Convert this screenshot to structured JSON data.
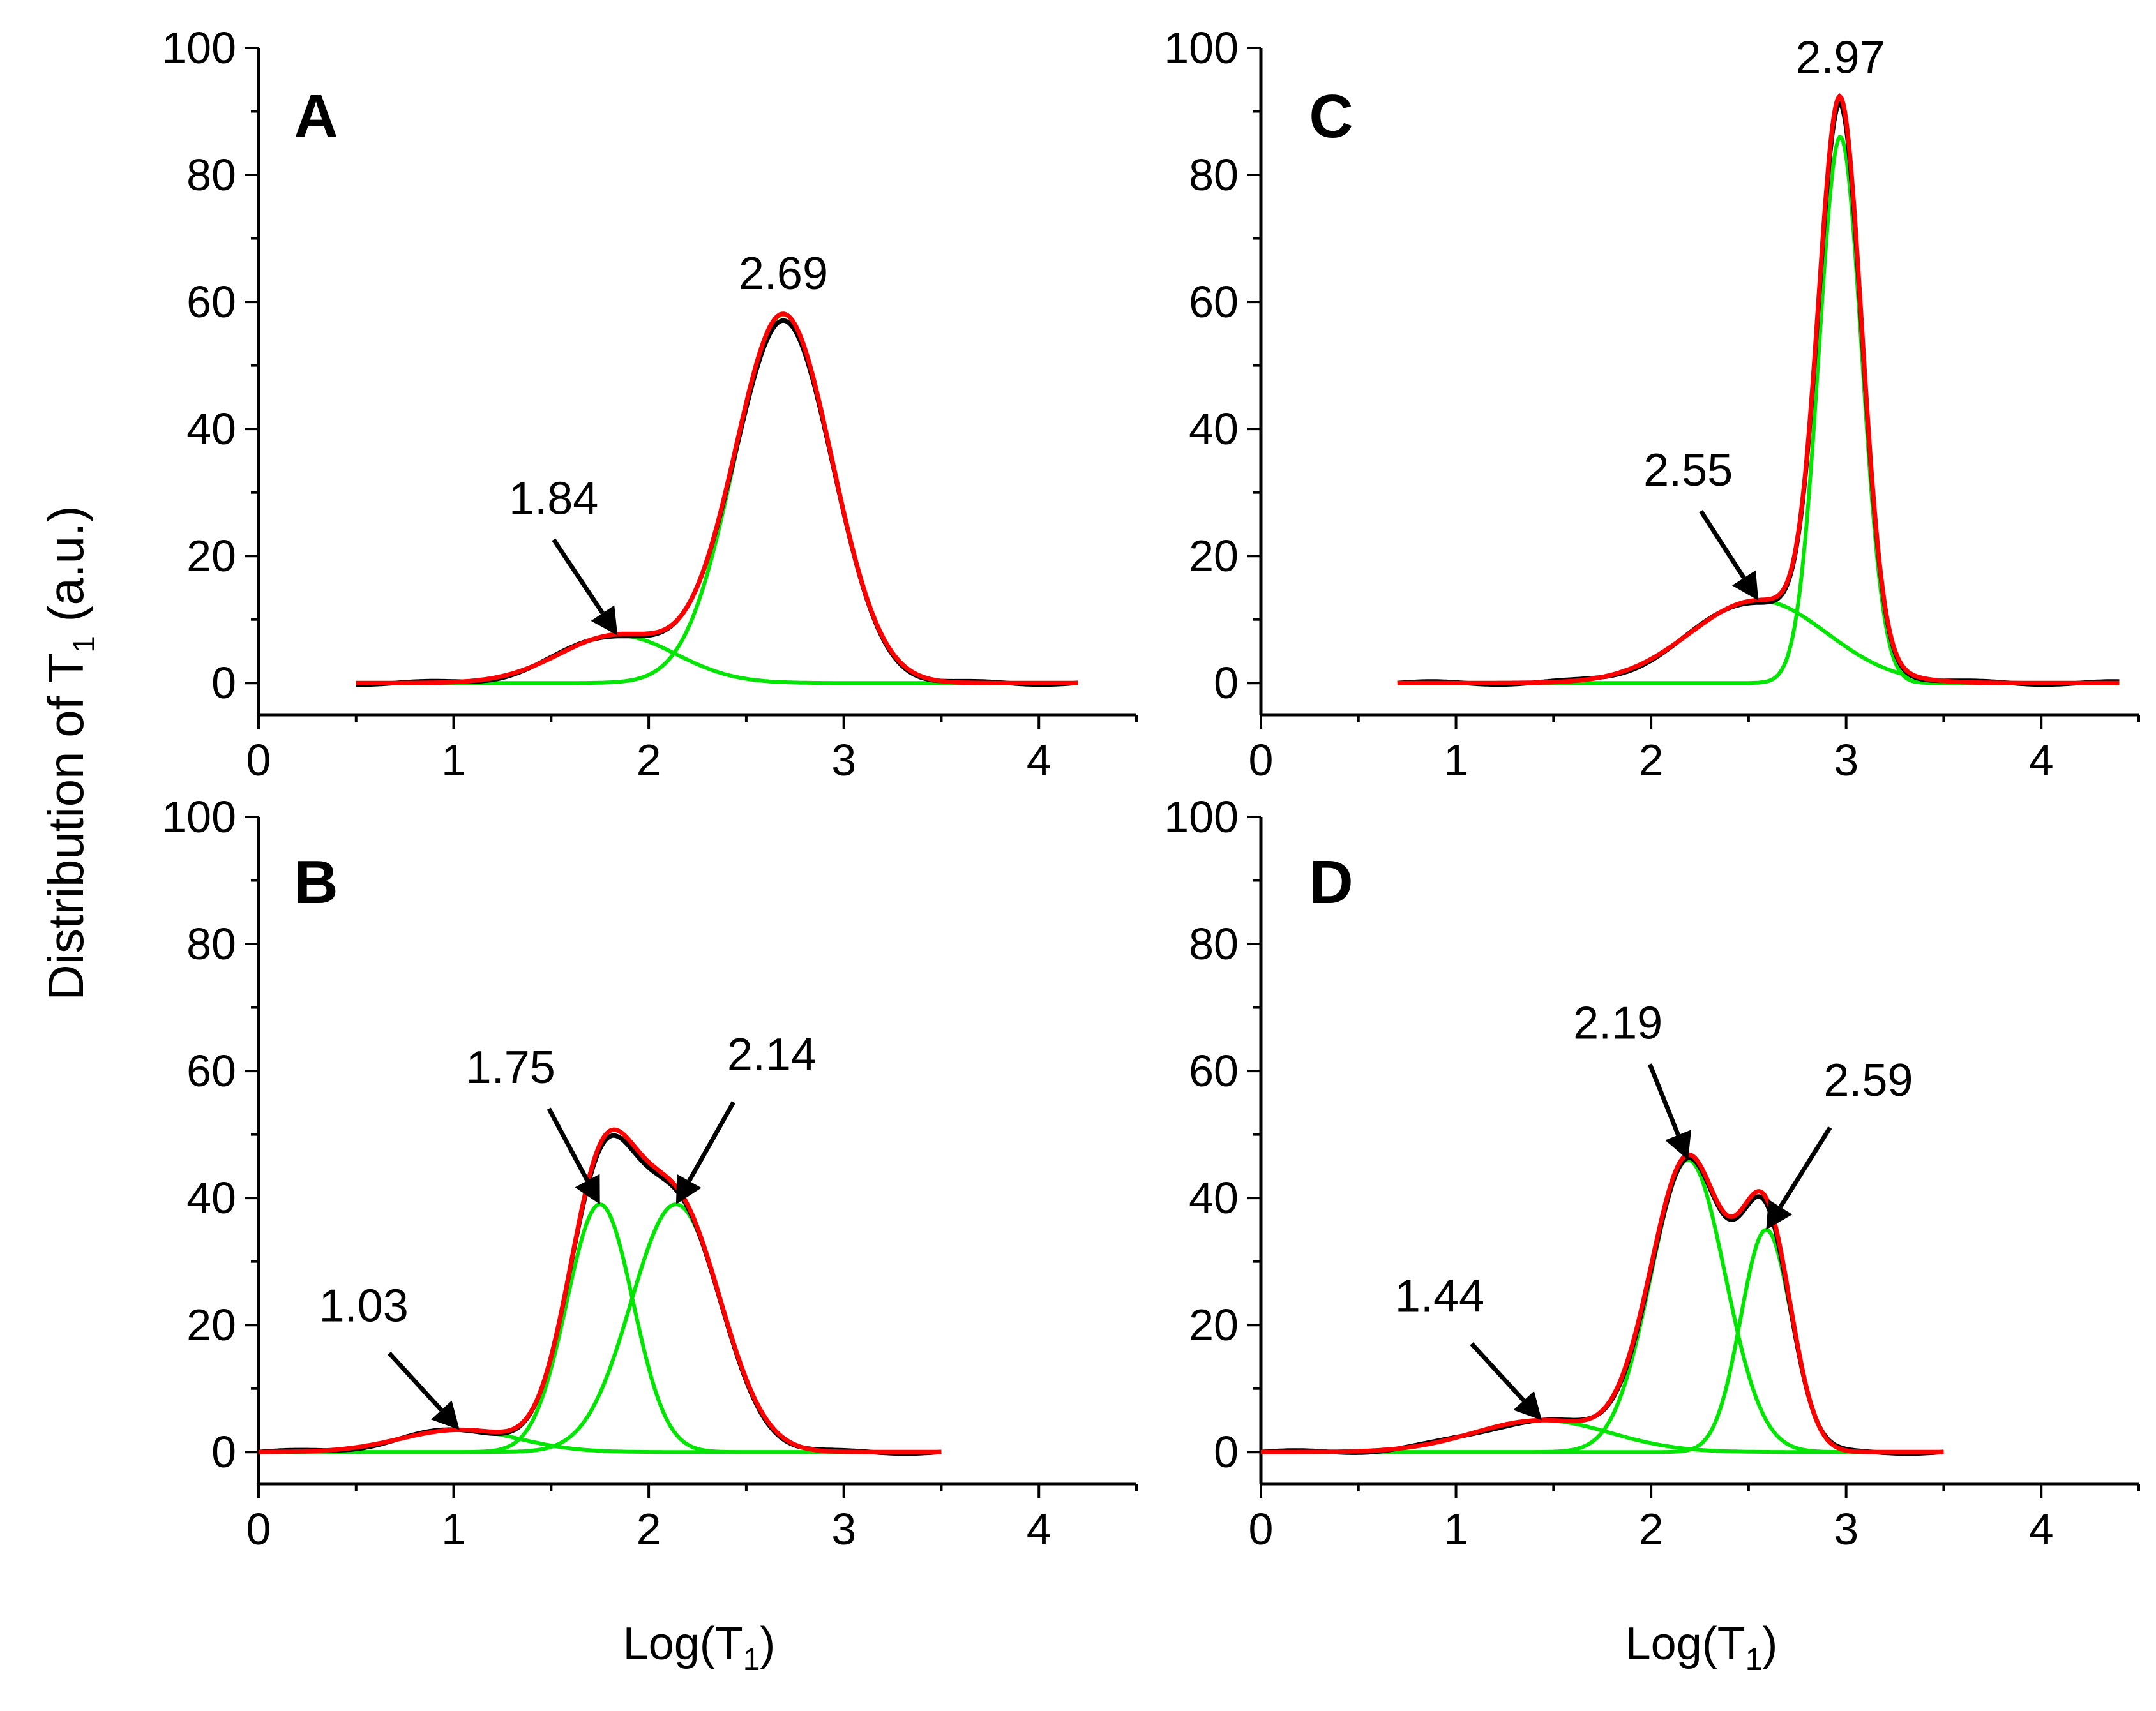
{
  "figure": {
    "y_axis_label": "Distribution of T",
    "y_axis_label_subscript": "1",
    "y_axis_label_suffix": " (a.u.)",
    "x_axis_label": "Log(T",
    "x_axis_label_subscript": "1",
    "x_axis_label_suffix": ")"
  },
  "chart_data": [
    {
      "type": "line",
      "panel": "A",
      "xlim": [
        0,
        4.5
      ],
      "ylim": [
        -5,
        100
      ],
      "xticks": [
        0,
        1,
        2,
        3,
        4
      ],
      "yticks": [
        0,
        20,
        40,
        60,
        80,
        100
      ],
      "x_range": [
        0.5,
        4.2
      ],
      "components": [
        {
          "mu": 1.84,
          "sigma": 0.3,
          "amp": 7.5
        },
        {
          "mu": 2.69,
          "sigma": 0.25,
          "amp": 58
        }
      ],
      "series_colors": {
        "measured": "#000000",
        "fit": "#ff0000",
        "component": "#00e600"
      },
      "annotations": [
        {
          "label": "1.84",
          "x": 1.84,
          "y": 7.5,
          "arrow": true
        },
        {
          "label": "2.69",
          "x": 2.69,
          "y": 58,
          "arrow": false
        }
      ]
    },
    {
      "type": "line",
      "panel": "B",
      "xlim": [
        0,
        4.5
      ],
      "ylim": [
        -5,
        100
      ],
      "xticks": [
        0,
        1,
        2,
        3,
        4
      ],
      "yticks": [
        0,
        20,
        40,
        60,
        80,
        100
      ],
      "x_range": [
        0,
        3.5
      ],
      "components": [
        {
          "mu": 1.03,
          "sigma": 0.3,
          "amp": 3.5
        },
        {
          "mu": 1.75,
          "sigma": 0.17,
          "amp": 39
        },
        {
          "mu": 2.14,
          "sigma": 0.23,
          "amp": 39
        }
      ],
      "series_colors": {
        "measured": "#000000",
        "fit": "#ff0000",
        "component": "#00e600"
      },
      "annotations": [
        {
          "label": "1.03",
          "x": 1.03,
          "y": 3.5,
          "arrow": true
        },
        {
          "label": "1.75",
          "x": 1.75,
          "y": 39,
          "arrow": true
        },
        {
          "label": "2.14",
          "x": 2.14,
          "y": 39,
          "arrow": true
        }
      ]
    },
    {
      "type": "line",
      "panel": "C",
      "xlim": [
        0,
        4.5
      ],
      "ylim": [
        -5,
        100
      ],
      "xticks": [
        0,
        1,
        2,
        3,
        4
      ],
      "yticks": [
        0,
        20,
        40,
        60,
        80,
        100
      ],
      "x_range": [
        0.7,
        4.4
      ],
      "components": [
        {
          "mu": 2.55,
          "sigma": 0.35,
          "amp": 13
        },
        {
          "mu": 2.97,
          "sigma": 0.11,
          "amp": 86
        }
      ],
      "series_colors": {
        "measured": "#000000",
        "fit": "#ff0000",
        "component": "#00e600"
      },
      "annotations": [
        {
          "label": "2.55",
          "x": 2.55,
          "y": 13,
          "arrow": true
        },
        {
          "label": "2.97",
          "x": 2.97,
          "y": 92,
          "arrow": false
        }
      ]
    },
    {
      "type": "line",
      "panel": "D",
      "xlim": [
        0,
        4.5
      ],
      "ylim": [
        -5,
        100
      ],
      "xticks": [
        0,
        1,
        2,
        3,
        4
      ],
      "yticks": [
        0,
        20,
        40,
        60,
        80,
        100
      ],
      "x_range": [
        0,
        3.5
      ],
      "components": [
        {
          "mu": 1.44,
          "sigma": 0.35,
          "amp": 5
        },
        {
          "mu": 2.19,
          "sigma": 0.19,
          "amp": 46
        },
        {
          "mu": 2.59,
          "sigma": 0.13,
          "amp": 35
        }
      ],
      "series_colors": {
        "measured": "#000000",
        "fit": "#ff0000",
        "component": "#00e600"
      },
      "annotations": [
        {
          "label": "1.44",
          "x": 1.44,
          "y": 5,
          "arrow": true
        },
        {
          "label": "2.19",
          "x": 2.19,
          "y": 46,
          "arrow": true
        },
        {
          "label": "2.59",
          "x": 2.59,
          "y": 35,
          "arrow": true
        }
      ]
    }
  ]
}
